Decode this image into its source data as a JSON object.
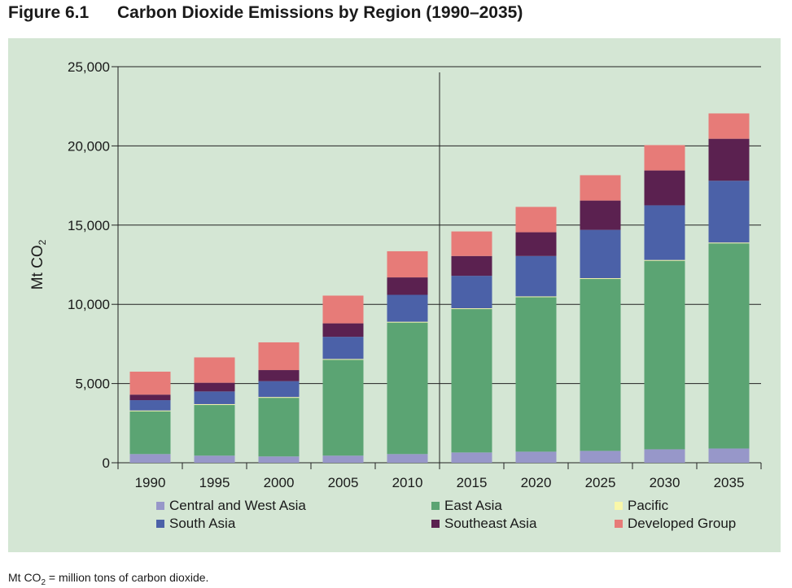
{
  "figure": {
    "number": "Figure 6.1",
    "title": "Carbon Dioxide Emissions by Region (1990–2035)"
  },
  "footnote": {
    "prefix": "Mt CO",
    "sub": "2",
    "suffix": " = million tons of carbon dioxide."
  },
  "chart_data": {
    "type": "bar",
    "stacked": true,
    "categories": [
      "1990",
      "1995",
      "2000",
      "2005",
      "2010",
      "2015",
      "2020",
      "2025",
      "2030",
      "2035"
    ],
    "ylabel": "Mt CO₂",
    "ylim": [
      0,
      25000
    ],
    "yticks": [
      0,
      5000,
      10000,
      15000,
      20000,
      25000
    ],
    "ytick_labels": [
      "0",
      "5,000",
      "10,000",
      "15,000",
      "20,000",
      "25,000"
    ],
    "grid": true,
    "legend_position": "bottom",
    "divider_between": [
      "2010",
      "2015"
    ],
    "series": [
      {
        "name": "Central and West Asia",
        "color": "#9797c9",
        "values": [
          550,
          450,
          400,
          450,
          550,
          650,
          700,
          750,
          850,
          900
        ]
      },
      {
        "name": "East Asia",
        "color": "#5ba473",
        "values": [
          2700,
          3200,
          3700,
          6050,
          8300,
          9050,
          9750,
          10850,
          11900,
          12950
        ]
      },
      {
        "name": "Pacific",
        "color": "#f9f7a9",
        "values": [
          50,
          50,
          50,
          50,
          50,
          50,
          50,
          50,
          50,
          50
        ]
      },
      {
        "name": "South Asia",
        "color": "#4b61a8",
        "values": [
          650,
          800,
          1000,
          1400,
          1700,
          2050,
          2550,
          3050,
          3450,
          3900
        ]
      },
      {
        "name": "Southeast Asia",
        "color": "#5b2150",
        "values": [
          350,
          550,
          700,
          850,
          1100,
          1250,
          1500,
          1850,
          2200,
          2650
        ]
      },
      {
        "name": "Developed Group",
        "color": "#e77b78",
        "values": [
          1450,
          1600,
          1750,
          1750,
          1650,
          1550,
          1600,
          1600,
          1600,
          1600
        ]
      }
    ]
  }
}
